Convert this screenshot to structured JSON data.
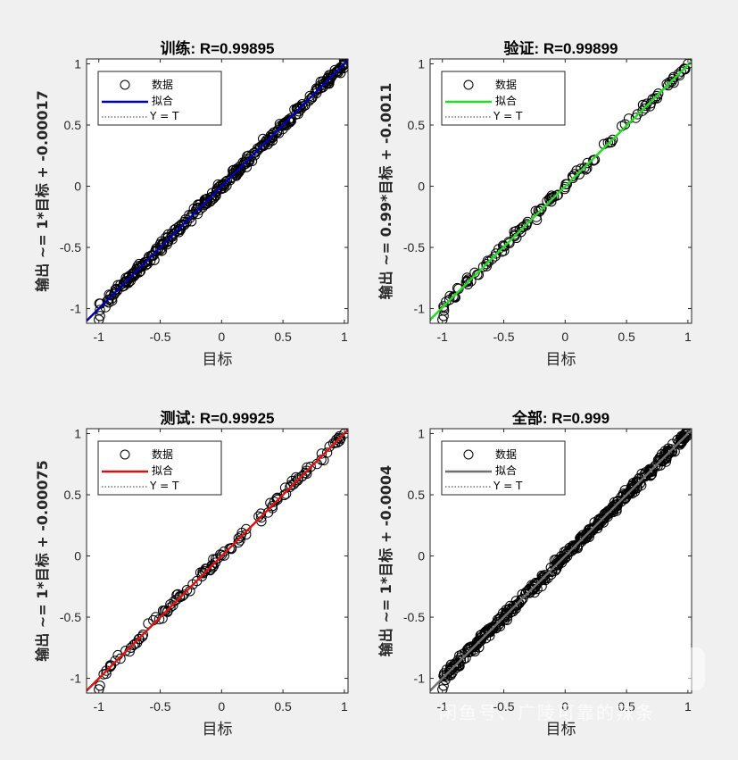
{
  "chart_data": [
    {
      "type": "scatter",
      "title": "训练: R=0.99895",
      "xlabel": "目标",
      "ylabel": "输出 ~= 1*目标 + -0.00017",
      "xlim": [
        -1.1,
        1.03
      ],
      "ylim": [
        -1.12,
        1.04
      ],
      "xticks": [
        -1,
        -0.5,
        0,
        0.5,
        1
      ],
      "yticks": [
        -1,
        -0.5,
        0,
        0.5,
        1
      ],
      "fit": {
        "slope": 1,
        "intercept": -0.00017,
        "color": "#0000b3"
      },
      "legend": {
        "position": "top-left",
        "entries": [
          "数据",
          "拟合",
          "Y = T"
        ]
      },
      "data": {
        "x_min": -1.0,
        "x_max": 1.0,
        "noise": 0.03
      }
    },
    {
      "type": "scatter",
      "title": "验证: R=0.99899",
      "xlabel": "目标",
      "ylabel": "输出 ~= 0.99*目标 + -0.0011",
      "xlim": [
        -1.1,
        1.03
      ],
      "ylim": [
        -1.12,
        1.04
      ],
      "xticks": [
        -1,
        -0.5,
        0,
        0.5,
        1
      ],
      "yticks": [
        -1,
        -0.5,
        0,
        0.5,
        1
      ],
      "fit": {
        "slope": 0.99,
        "intercept": -0.0011,
        "color": "#22dd22"
      },
      "legend": {
        "position": "top-left",
        "entries": [
          "数据",
          "拟合",
          "Y = T"
        ]
      },
      "data": {
        "x_min": -1.0,
        "x_max": 0.98,
        "noise": 0.03
      }
    },
    {
      "type": "scatter",
      "title": "测试: R=0.99925",
      "xlabel": "目标",
      "ylabel": "输出 ~= 1*目标 + -0.00075",
      "xlim": [
        -1.1,
        1.03
      ],
      "ylim": [
        -1.12,
        1.04
      ],
      "xticks": [
        -1,
        -0.5,
        0,
        0.5,
        1
      ],
      "yticks": [
        -1,
        -0.5,
        0,
        0.5,
        1
      ],
      "fit": {
        "slope": 1,
        "intercept": -0.00075,
        "color": "#dd1111"
      },
      "legend": {
        "position": "top-left",
        "entries": [
          "数据",
          "拟合",
          "Y = T"
        ]
      },
      "data": {
        "x_min": -1.0,
        "x_max": 0.98,
        "noise": 0.03
      }
    },
    {
      "type": "scatter",
      "title": "全部: R=0.999",
      "xlabel": "目标",
      "ylabel": "输出 ~= 1*目标 + -0.0004",
      "xlim": [
        -1.1,
        1.03
      ],
      "ylim": [
        -1.12,
        1.04
      ],
      "xticks": [
        -1,
        -0.5,
        0,
        0.5,
        1
      ],
      "yticks": [
        -1,
        -0.5,
        0,
        0.5,
        1
      ],
      "fit": {
        "slope": 1,
        "intercept": -0.0004,
        "color": "#707070"
      },
      "legend": {
        "position": "top-left",
        "entries": [
          "数据",
          "拟合",
          "Y = T"
        ]
      },
      "data": {
        "x_min": -1.0,
        "x_max": 1.0,
        "noise": 0.03
      }
    }
  ],
  "watermark": {
    "badge": "闲鱼",
    "text": "闲鱼号、广陵可靠的辣条"
  }
}
